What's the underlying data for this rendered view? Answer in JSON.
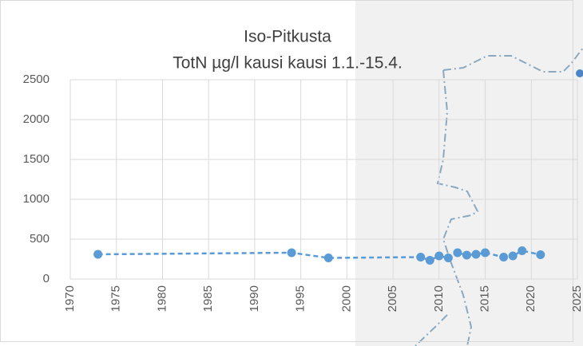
{
  "chart_data": {
    "type": "line",
    "title": "Iso-Pitkusta",
    "subtitle": "TotN µg/l kausi kausi 1.1.-15.4.",
    "series": [
      {
        "color": "#5b9bd5",
        "x": [
          1973,
          1994,
          1998,
          2008,
          2009,
          2010,
          2011,
          2012,
          2013,
          2014,
          2015,
          2017,
          2018,
          2019,
          2021
        ],
        "values": [
          310,
          330,
          265,
          275,
          235,
          290,
          265,
          330,
          300,
          310,
          330,
          275,
          290,
          355,
          305
        ]
      }
    ],
    "xlim": [
      1970,
      2025
    ],
    "xticks": [
      1970,
      1975,
      1980,
      1985,
      1990,
      1995,
      2000,
      2005,
      2010,
      2015,
      2020,
      2025
    ],
    "ylim": [
      0,
      2500
    ],
    "yticks": [
      0,
      500,
      1000,
      1500,
      2000,
      2500
    ],
    "grid": true
  }
}
